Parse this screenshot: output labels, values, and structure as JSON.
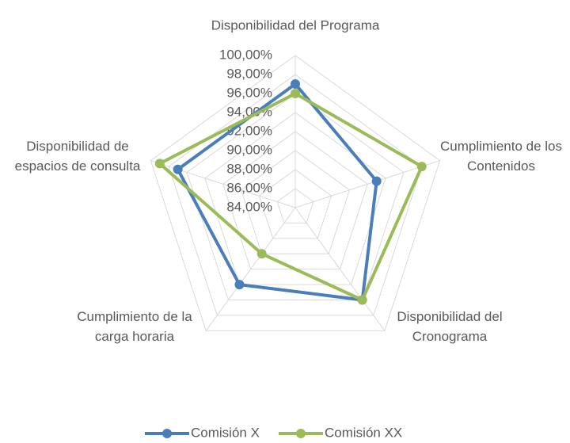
{
  "chart_data": {
    "type": "radar",
    "categories": [
      "Disponibilidad del Programa",
      "Cumplimiento de los Contenidos",
      "Disponibilidad del Cronograma",
      "Cumplimiento de la carga horaria",
      "Disponibilidad de espacios de consulta"
    ],
    "series": [
      {
        "name": "Comisión X",
        "color": "#4a7ebb",
        "values": [
          97,
          93,
          96,
          94,
          97
        ]
      },
      {
        "name": "Comisión XX",
        "color": "#9bbb59",
        "values": [
          96,
          98,
          96,
          90,
          99
        ]
      }
    ],
    "rlim": [
      84,
      100
    ],
    "rticks": [
      {
        "value": 84,
        "label": "84,00%"
      },
      {
        "value": 86,
        "label": "86,00%"
      },
      {
        "value": 88,
        "label": "88,00%"
      },
      {
        "value": 90,
        "label": "90,00%"
      },
      {
        "value": 92,
        "label": "92,00%"
      },
      {
        "value": 94,
        "label": "94,00%"
      },
      {
        "value": 96,
        "label": "96,00%"
      },
      {
        "value": 98,
        "label": "98,00%"
      },
      {
        "value": 100,
        "label": "100,00%"
      }
    ],
    "grid": true,
    "legend": "bottom"
  }
}
